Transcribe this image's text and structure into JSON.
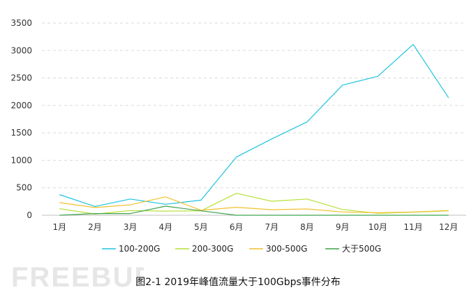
{
  "chart_data": {
    "type": "line",
    "title": "",
    "xlabel": "",
    "ylabel": "",
    "categories": [
      "1月",
      "2月",
      "3月",
      "4月",
      "5月",
      "6月",
      "7月",
      "8月",
      "9月",
      "10月",
      "11月",
      "12月"
    ],
    "ylim": [
      0,
      3500
    ],
    "yticks": [
      0,
      500,
      1000,
      1500,
      2000,
      2500,
      3000,
      3500
    ],
    "grid": true,
    "legend_position": "bottom",
    "series": [
      {
        "name": "100-200G",
        "color": "#1ec3e0",
        "values": [
          375,
          160,
          295,
          200,
          275,
          1060,
          1390,
          1700,
          2370,
          2530,
          3110,
          2140
        ]
      },
      {
        "name": "200-300G",
        "color": "#b7e03a",
        "values": [
          120,
          20,
          85,
          75,
          80,
          400,
          255,
          295,
          105,
          35,
          55,
          80
        ]
      },
      {
        "name": "300-500G",
        "color": "#f2c12e",
        "values": [
          230,
          140,
          190,
          335,
          90,
          145,
          100,
          115,
          60,
          45,
          60,
          85
        ]
      },
      {
        "name": "大于500G",
        "color": "#3fa34d",
        "values": [
          0,
          30,
          30,
          165,
          80,
          0,
          0,
          0,
          0,
          0,
          0,
          0
        ]
      }
    ]
  },
  "caption": "图2-1  2019年峰值流量大于100Gbps事件分布",
  "watermark_text": "FREEBUF"
}
